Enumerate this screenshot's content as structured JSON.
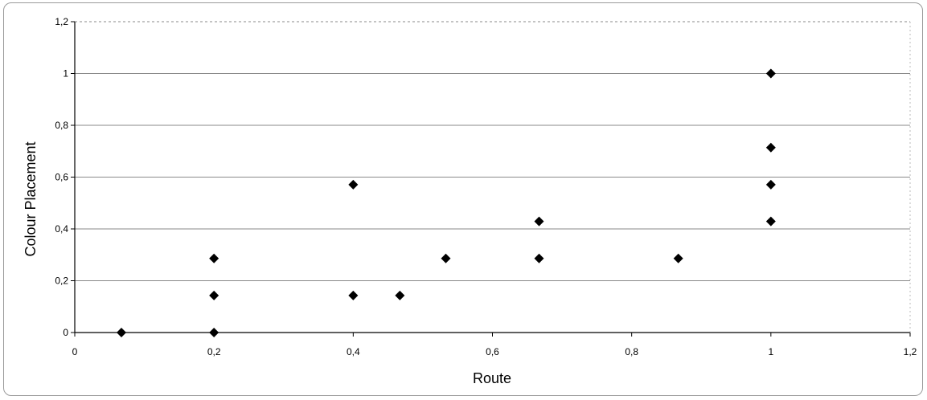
{
  "chart_data": {
    "type": "scatter",
    "xlabel": "Route",
    "ylabel": "Colour Placement",
    "xlim": [
      0,
      1.2
    ],
    "ylim": [
      0,
      1.2
    ],
    "x_ticks": [
      "0",
      "0,2",
      "0,4",
      "0,6",
      "0,8",
      "1",
      "1,2"
    ],
    "y_ticks": [
      "0",
      "0,2",
      "0,4",
      "0,6",
      "0,8",
      "1",
      "1,2"
    ],
    "grid": "horizontal",
    "marker": "diamond",
    "marker_color": "#000000",
    "series": [
      {
        "points": [
          {
            "x": 0.067,
            "y": 0.0
          },
          {
            "x": 0.2,
            "y": 0.0
          },
          {
            "x": 0.2,
            "y": 0.143
          },
          {
            "x": 0.2,
            "y": 0.286
          },
          {
            "x": 0.4,
            "y": 0.143
          },
          {
            "x": 0.4,
            "y": 0.571
          },
          {
            "x": 0.467,
            "y": 0.143
          },
          {
            "x": 0.533,
            "y": 0.286
          },
          {
            "x": 0.667,
            "y": 0.286
          },
          {
            "x": 0.667,
            "y": 0.429
          },
          {
            "x": 0.867,
            "y": 0.286
          },
          {
            "x": 1.0,
            "y": 0.429
          },
          {
            "x": 1.0,
            "y": 0.571
          },
          {
            "x": 1.0,
            "y": 0.714
          },
          {
            "x": 1.0,
            "y": 1.0
          }
        ]
      }
    ]
  }
}
